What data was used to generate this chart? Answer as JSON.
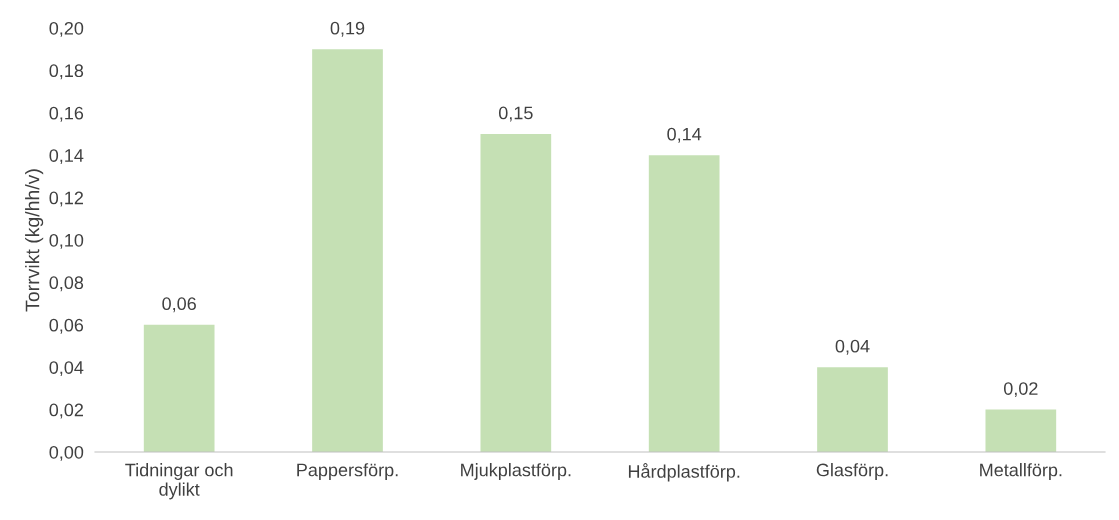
{
  "chart_data": {
    "type": "bar",
    "ylabel": "Torrvikt (kg/hh/v)",
    "categories": [
      "Tidningar och dylikt",
      "Pappersförp.",
      "Mjukplastförp.",
      "Hårdplastförp.",
      "Glasförp.",
      "Metallförp."
    ],
    "values": [
      0.06,
      0.19,
      0.15,
      0.14,
      0.04,
      0.02
    ],
    "value_labels": [
      "0,06",
      "0,19",
      "0,15",
      "0,14",
      "0,04",
      "0,02"
    ],
    "color": "#c5e0b4",
    "ylim": [
      0,
      0.2
    ],
    "yticks": [
      {
        "value": 0,
        "label": "0,00"
      },
      {
        "value": 0.02,
        "label": "0,02"
      },
      {
        "value": 0.04,
        "label": "0,04"
      },
      {
        "value": 0.06,
        "label": "0,06"
      },
      {
        "value": 0.08,
        "label": "0,08"
      },
      {
        "value": 0.1,
        "label": "0,10"
      },
      {
        "value": 0.12,
        "label": "0,12"
      },
      {
        "value": 0.14,
        "label": "0,14"
      },
      {
        "value": 0.16,
        "label": "0,16"
      },
      {
        "value": 0.18,
        "label": "0,18"
      },
      {
        "value": 0.2,
        "label": "0,20"
      }
    ],
    "grid": false
  }
}
